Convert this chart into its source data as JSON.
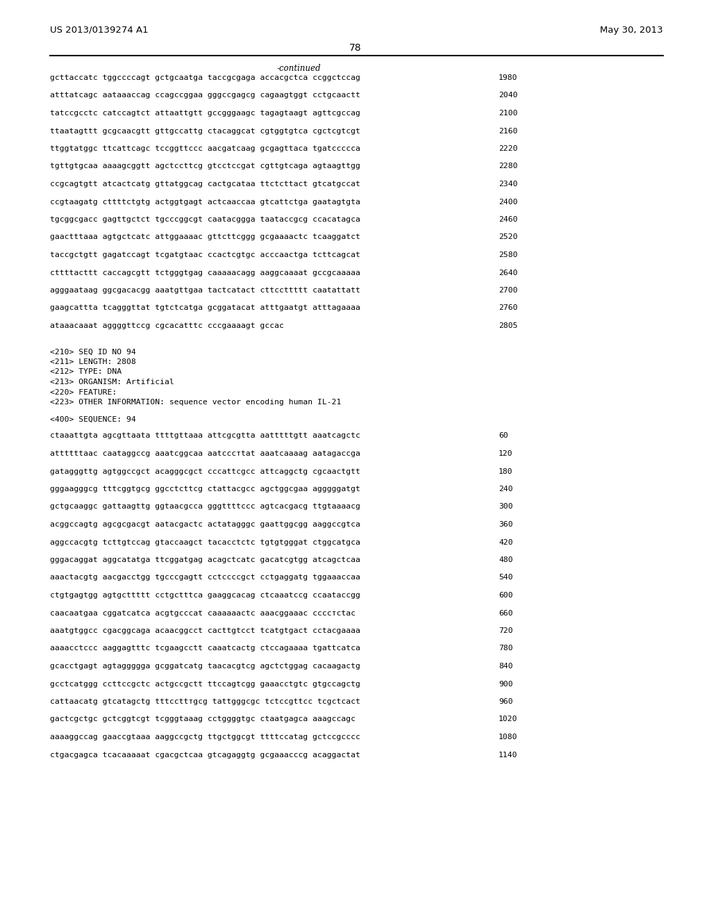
{
  "header_left": "US 2013/0139274 A1",
  "header_right": "May 30, 2013",
  "page_number": "78",
  "continued_label": "-continued",
  "background_color": "#ffffff",
  "text_color": "#000000",
  "sequence_lines_top": [
    [
      "gcttaccatc tggccccagt gctgcaatga taccgcgaga accacgctca ccggctccag",
      "1980"
    ],
    [
      "atttatcagc aataaaccag ccagccggaa gggccgagcg cagaagtggt cctgcaactt",
      "2040"
    ],
    [
      "tatccgcctc catccagtct attaattgtt gccgggaagc tagagtaagt agttcgccag",
      "2100"
    ],
    [
      "ttaatagttt gcgcaacgtt gttgccattg ctacaggcat cgtggtgtca cgctcgtcgt",
      "2160"
    ],
    [
      "ttggtatggc ttcattcagc tccggttccc aacgatcaag gcgagttaca tgatccccca",
      "2220"
    ],
    [
      "tgttgtgcaa aaaagcggtt agctccttcg gtcctccgat cgttgtcaga agtaagttgg",
      "2280"
    ],
    [
      "ccgcagtgtt atcactcatg gttatggcag cactgcataa ttctcttact gtcatgccat",
      "2340"
    ],
    [
      "ccgtaagatg cttttctgtg actggtgagt actcaaccaa gtcattctga gaatagtgta",
      "2400"
    ],
    [
      "tgcggcgacc gagttgctct tgcccggcgt caatacggga taataccgcg ccacatagca",
      "2460"
    ],
    [
      "gaactttaaa agtgctcatc attggaaaac gttcttcggg gcgaaaactc tcaaggatct",
      "2520"
    ],
    [
      "taccgctgtt gagatccagt tcgatgtaac ccactcgtgc acccaactga tcttcagcat",
      "2580"
    ],
    [
      "cttttacttt caccagcgtt tctgggtgag caaaaacagg aaggcaaaat gccgcaaaaa",
      "2640"
    ],
    [
      "agggaataag ggcgacacgg aaatgttgaa tactcatact cttccttttt caatattatt",
      "2700"
    ],
    [
      "gaagcattta tcagggttat tgtctcatga gcggatacat atttgaatgt atttagaaaa",
      "2760"
    ],
    [
      "ataaacaaat aggggttccg cgcacatttc cccgaaaagt gccac",
      "2805"
    ]
  ],
  "metadata_lines": [
    "<210> SEQ ID NO 94",
    "<211> LENGTH: 2808",
    "<212> TYPE: DNA",
    "<213> ORGANISM: Artificial",
    "<220> FEATURE:",
    "<223> OTHER INFORMATION: sequence vector encoding human IL-21"
  ],
  "sequence_label": "<400> SEQUENCE: 94",
  "sequence_lines_bottom": [
    [
      "ctaaattgta agcgttaata ttttgttaaa attcgcgtta aatttttgtt aaatcagctc",
      "60"
    ],
    [
      "attttttaac caataggccg aaatcggcaa aatcccтtat aaatcaaaag aatagaccga",
      "120"
    ],
    [
      "gatagggttg agtggccgct acagggcgct cccattcgcc attcaggctg cgcaactgtt",
      "180"
    ],
    [
      "gggaagggcg tttcggtgcg ggcctcttcg ctattacgcc agctggcgaa agggggatgt",
      "240"
    ],
    [
      "gctgcaaggc gattaagttg ggtaacgcca gggttttccc agtcacgacg ttgtaaaacg",
      "300"
    ],
    [
      "acggccagtg agcgcgacgt aatacgactc actatagggc gaattggcgg aaggccgtca",
      "360"
    ],
    [
      "aggccacgtg tcttgtccag gtaccaagct tacacctctc tgtgtgggat ctggcatgca",
      "420"
    ],
    [
      "gggacaggat aggcatatga ttcggatgag acagctcatc gacatcgtgg atcagctcaa",
      "480"
    ],
    [
      "aaactacgtg aacgacctgg tgcccgagtt cctccccgct cctgaggatg tggaaaccaa",
      "540"
    ],
    [
      "ctgtgagtgg agtgcttttt cctgctttca gaaggcacag ctcaaatccg ccaataccgg",
      "600"
    ],
    [
      "caacaatgaa cggatcatca acgtgcccat caaaaaactc aaacggaaac ccccтctac",
      "660"
    ],
    [
      "aaatgtggcc cgacggcaga acaacggcct cacttgtcct tcatgtgact cctacgaaaa",
      "720"
    ],
    [
      "aaaacctccc aaggagtttc tcgaagcctt caaatcactg ctccagaaaa tgattcatca",
      "780"
    ],
    [
      "gcacctgagt agtaggggga gcggatcatg taacacgtcg agctctggag cacaagactg",
      "840"
    ],
    [
      "gcctcatggg ccttccgctc actgccgctt ttccagtcgg gaaacctgtc gtgccagctg",
      "900"
    ],
    [
      "cattaacatg gtcatagctg tttccttтgcg tattgggcgc tctccgttcc tcgctcact",
      "960"
    ],
    [
      "gactcgctgc gctcggtcgt tcgggtaaag cctggggtgc ctaatgagca aaagccagc",
      "1020"
    ],
    [
      "aaaaggccag gaaccgtaaa aaggccgctg ttgctggcgt ttttccatag gctccgcccc",
      "1080"
    ],
    [
      "ctgacgagca tcacaaaaat cgacgctcaa gtcagaggtg gcgaaacccg acaggactat",
      "1140"
    ]
  ]
}
